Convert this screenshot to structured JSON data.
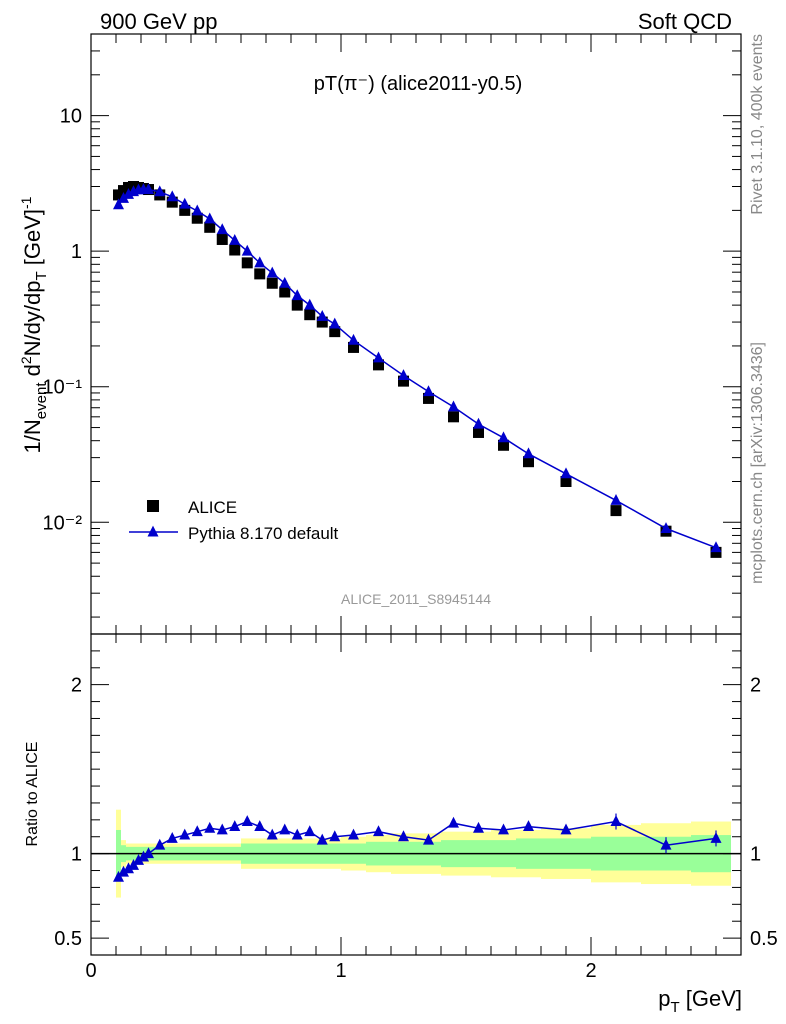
{
  "header": {
    "left_label": "900 GeV pp",
    "right_label": "Soft QCD"
  },
  "side_text": {
    "upper": "Rivet 3.1.10,  400k events",
    "lower": "mcplots.cern.ch [arXiv:1306.3436]"
  },
  "chart_data": [
    {
      "type": "scatter",
      "panel": "main",
      "title": "pT(π⁻) (alice2011-y0.5)",
      "analysis_label": "ALICE_2011_S8945144",
      "ylabel": "1/N_event d²N/dy/dp_T [GeV]⁻¹",
      "yscale": "log",
      "xlim": [
        0,
        2.6
      ],
      "ylim": [
        0.0015,
        40
      ],
      "ytick_labels": [
        "10⁻²",
        "10⁻¹",
        "1",
        "10"
      ],
      "legend_position": "lower-left",
      "colors": {
        "data": "#000000",
        "mc": "#0000cc"
      },
      "series": [
        {
          "name": "ALICE",
          "marker": "square",
          "x": [
            0.11,
            0.13,
            0.15,
            0.17,
            0.19,
            0.21,
            0.23,
            0.275,
            0.325,
            0.375,
            0.425,
            0.475,
            0.525,
            0.575,
            0.625,
            0.675,
            0.725,
            0.775,
            0.825,
            0.875,
            0.925,
            0.975,
            1.05,
            1.15,
            1.25,
            1.35,
            1.45,
            1.55,
            1.65,
            1.75,
            1.9,
            2.1,
            2.3,
            2.5
          ],
          "y": [
            2.6,
            2.8,
            2.95,
            3.0,
            2.95,
            2.9,
            2.85,
            2.6,
            2.3,
            2.0,
            1.75,
            1.5,
            1.22,
            1.02,
            0.82,
            0.68,
            0.58,
            0.5,
            0.4,
            0.34,
            0.3,
            0.255,
            0.195,
            0.145,
            0.11,
            0.082,
            0.06,
            0.046,
            0.037,
            0.028,
            0.02,
            0.0122,
            0.0086,
            0.006
          ]
        },
        {
          "name": "Pythia 8.170 default",
          "marker": "triangle",
          "x": [
            0.11,
            0.13,
            0.15,
            0.17,
            0.19,
            0.21,
            0.23,
            0.275,
            0.325,
            0.375,
            0.425,
            0.475,
            0.525,
            0.575,
            0.625,
            0.675,
            0.725,
            0.775,
            0.825,
            0.875,
            0.925,
            0.975,
            1.05,
            1.15,
            1.25,
            1.35,
            1.45,
            1.55,
            1.65,
            1.75,
            1.9,
            2.1,
            2.3,
            2.5
          ],
          "y": [
            2.2,
            2.45,
            2.62,
            2.75,
            2.83,
            2.85,
            2.85,
            2.74,
            2.52,
            2.22,
            1.98,
            1.73,
            1.44,
            1.2,
            1.0,
            0.82,
            0.69,
            0.58,
            0.47,
            0.4,
            0.33,
            0.29,
            0.22,
            0.163,
            0.121,
            0.092,
            0.071,
            0.053,
            0.042,
            0.032,
            0.0228,
            0.0145,
            0.009,
            0.0065
          ]
        }
      ]
    },
    {
      "type": "line",
      "panel": "ratio",
      "ylabel": "Ratio to ALICE",
      "xlabel": "p_T [GeV]",
      "xlim": [
        0,
        2.6
      ],
      "ylim": [
        0.4,
        2.3
      ],
      "xtick_labels": [
        "0",
        "1",
        "2"
      ],
      "ytick_labels": [
        "0.5",
        "1",
        "2"
      ],
      "colors": {
        "mc": "#0000cc",
        "band_inner": "#99ff99",
        "band_outer": "#ffff99"
      },
      "bands": {
        "x_edges": [
          0.1,
          0.12,
          0.14,
          0.16,
          0.18,
          0.2,
          0.22,
          0.25,
          0.3,
          0.35,
          0.4,
          0.45,
          0.5,
          0.55,
          0.6,
          0.65,
          0.7,
          0.75,
          0.8,
          0.85,
          0.9,
          0.95,
          1.0,
          1.1,
          1.2,
          1.3,
          1.4,
          1.5,
          1.6,
          1.7,
          1.8,
          2.0,
          2.2,
          2.4,
          2.6
        ],
        "inner": [
          0.14,
          0.05,
          0.04,
          0.04,
          0.04,
          0.04,
          0.04,
          0.04,
          0.04,
          0.04,
          0.04,
          0.04,
          0.04,
          0.04,
          0.06,
          0.06,
          0.06,
          0.06,
          0.06,
          0.06,
          0.06,
          0.06,
          0.06,
          0.07,
          0.07,
          0.07,
          0.08,
          0.08,
          0.08,
          0.09,
          0.09,
          0.1,
          0.1,
          0.11,
          0.12
        ],
        "outer": [
          0.26,
          0.08,
          0.06,
          0.06,
          0.06,
          0.06,
          0.06,
          0.06,
          0.06,
          0.06,
          0.06,
          0.06,
          0.06,
          0.06,
          0.09,
          0.09,
          0.09,
          0.09,
          0.09,
          0.09,
          0.09,
          0.09,
          0.1,
          0.11,
          0.12,
          0.12,
          0.13,
          0.13,
          0.14,
          0.14,
          0.15,
          0.17,
          0.18,
          0.19,
          0.2
        ]
      },
      "series": [
        {
          "name": "Pythia 8.170 default",
          "x": [
            0.11,
            0.13,
            0.15,
            0.17,
            0.19,
            0.21,
            0.23,
            0.275,
            0.325,
            0.375,
            0.425,
            0.475,
            0.525,
            0.575,
            0.625,
            0.675,
            0.725,
            0.775,
            0.825,
            0.875,
            0.925,
            0.975,
            1.05,
            1.15,
            1.25,
            1.35,
            1.45,
            1.55,
            1.65,
            1.75,
            1.9,
            2.1,
            2.3,
            2.5
          ],
          "y": [
            0.86,
            0.89,
            0.91,
            0.93,
            0.96,
            0.98,
            1.0,
            1.05,
            1.09,
            1.11,
            1.13,
            1.15,
            1.14,
            1.16,
            1.19,
            1.16,
            1.11,
            1.14,
            1.11,
            1.13,
            1.08,
            1.1,
            1.11,
            1.13,
            1.1,
            1.08,
            1.18,
            1.15,
            1.14,
            1.16,
            1.14,
            1.19,
            1.05,
            1.09
          ]
        }
      ]
    }
  ]
}
